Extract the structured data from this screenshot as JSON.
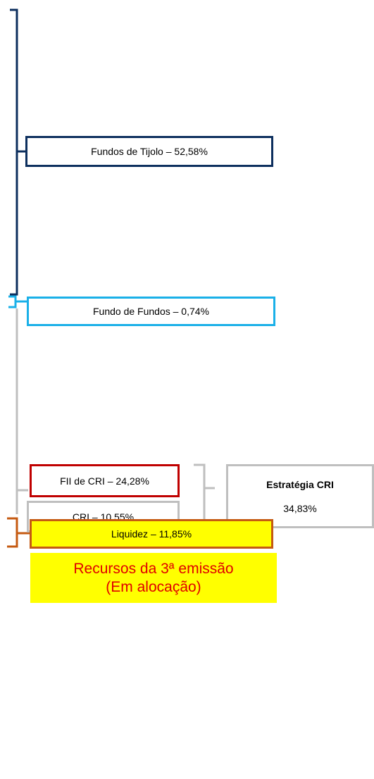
{
  "boxes": [
    {
      "label": "Fundos de Tijolo – 52,58%"
    },
    {
      "label": "Fundo de Fundos – 0,74%"
    },
    {
      "label": "FII de CRI – 24,28%"
    },
    {
      "label": "CRI – 10,55%"
    },
    {
      "label": "Liquidez – 11,85%"
    }
  ],
  "strategy": {
    "title": "Estratégia CRI",
    "value": "34,83%"
  },
  "note": {
    "line1": "Recursos da 3ª emissão",
    "line2": "(Em alocação)"
  }
}
